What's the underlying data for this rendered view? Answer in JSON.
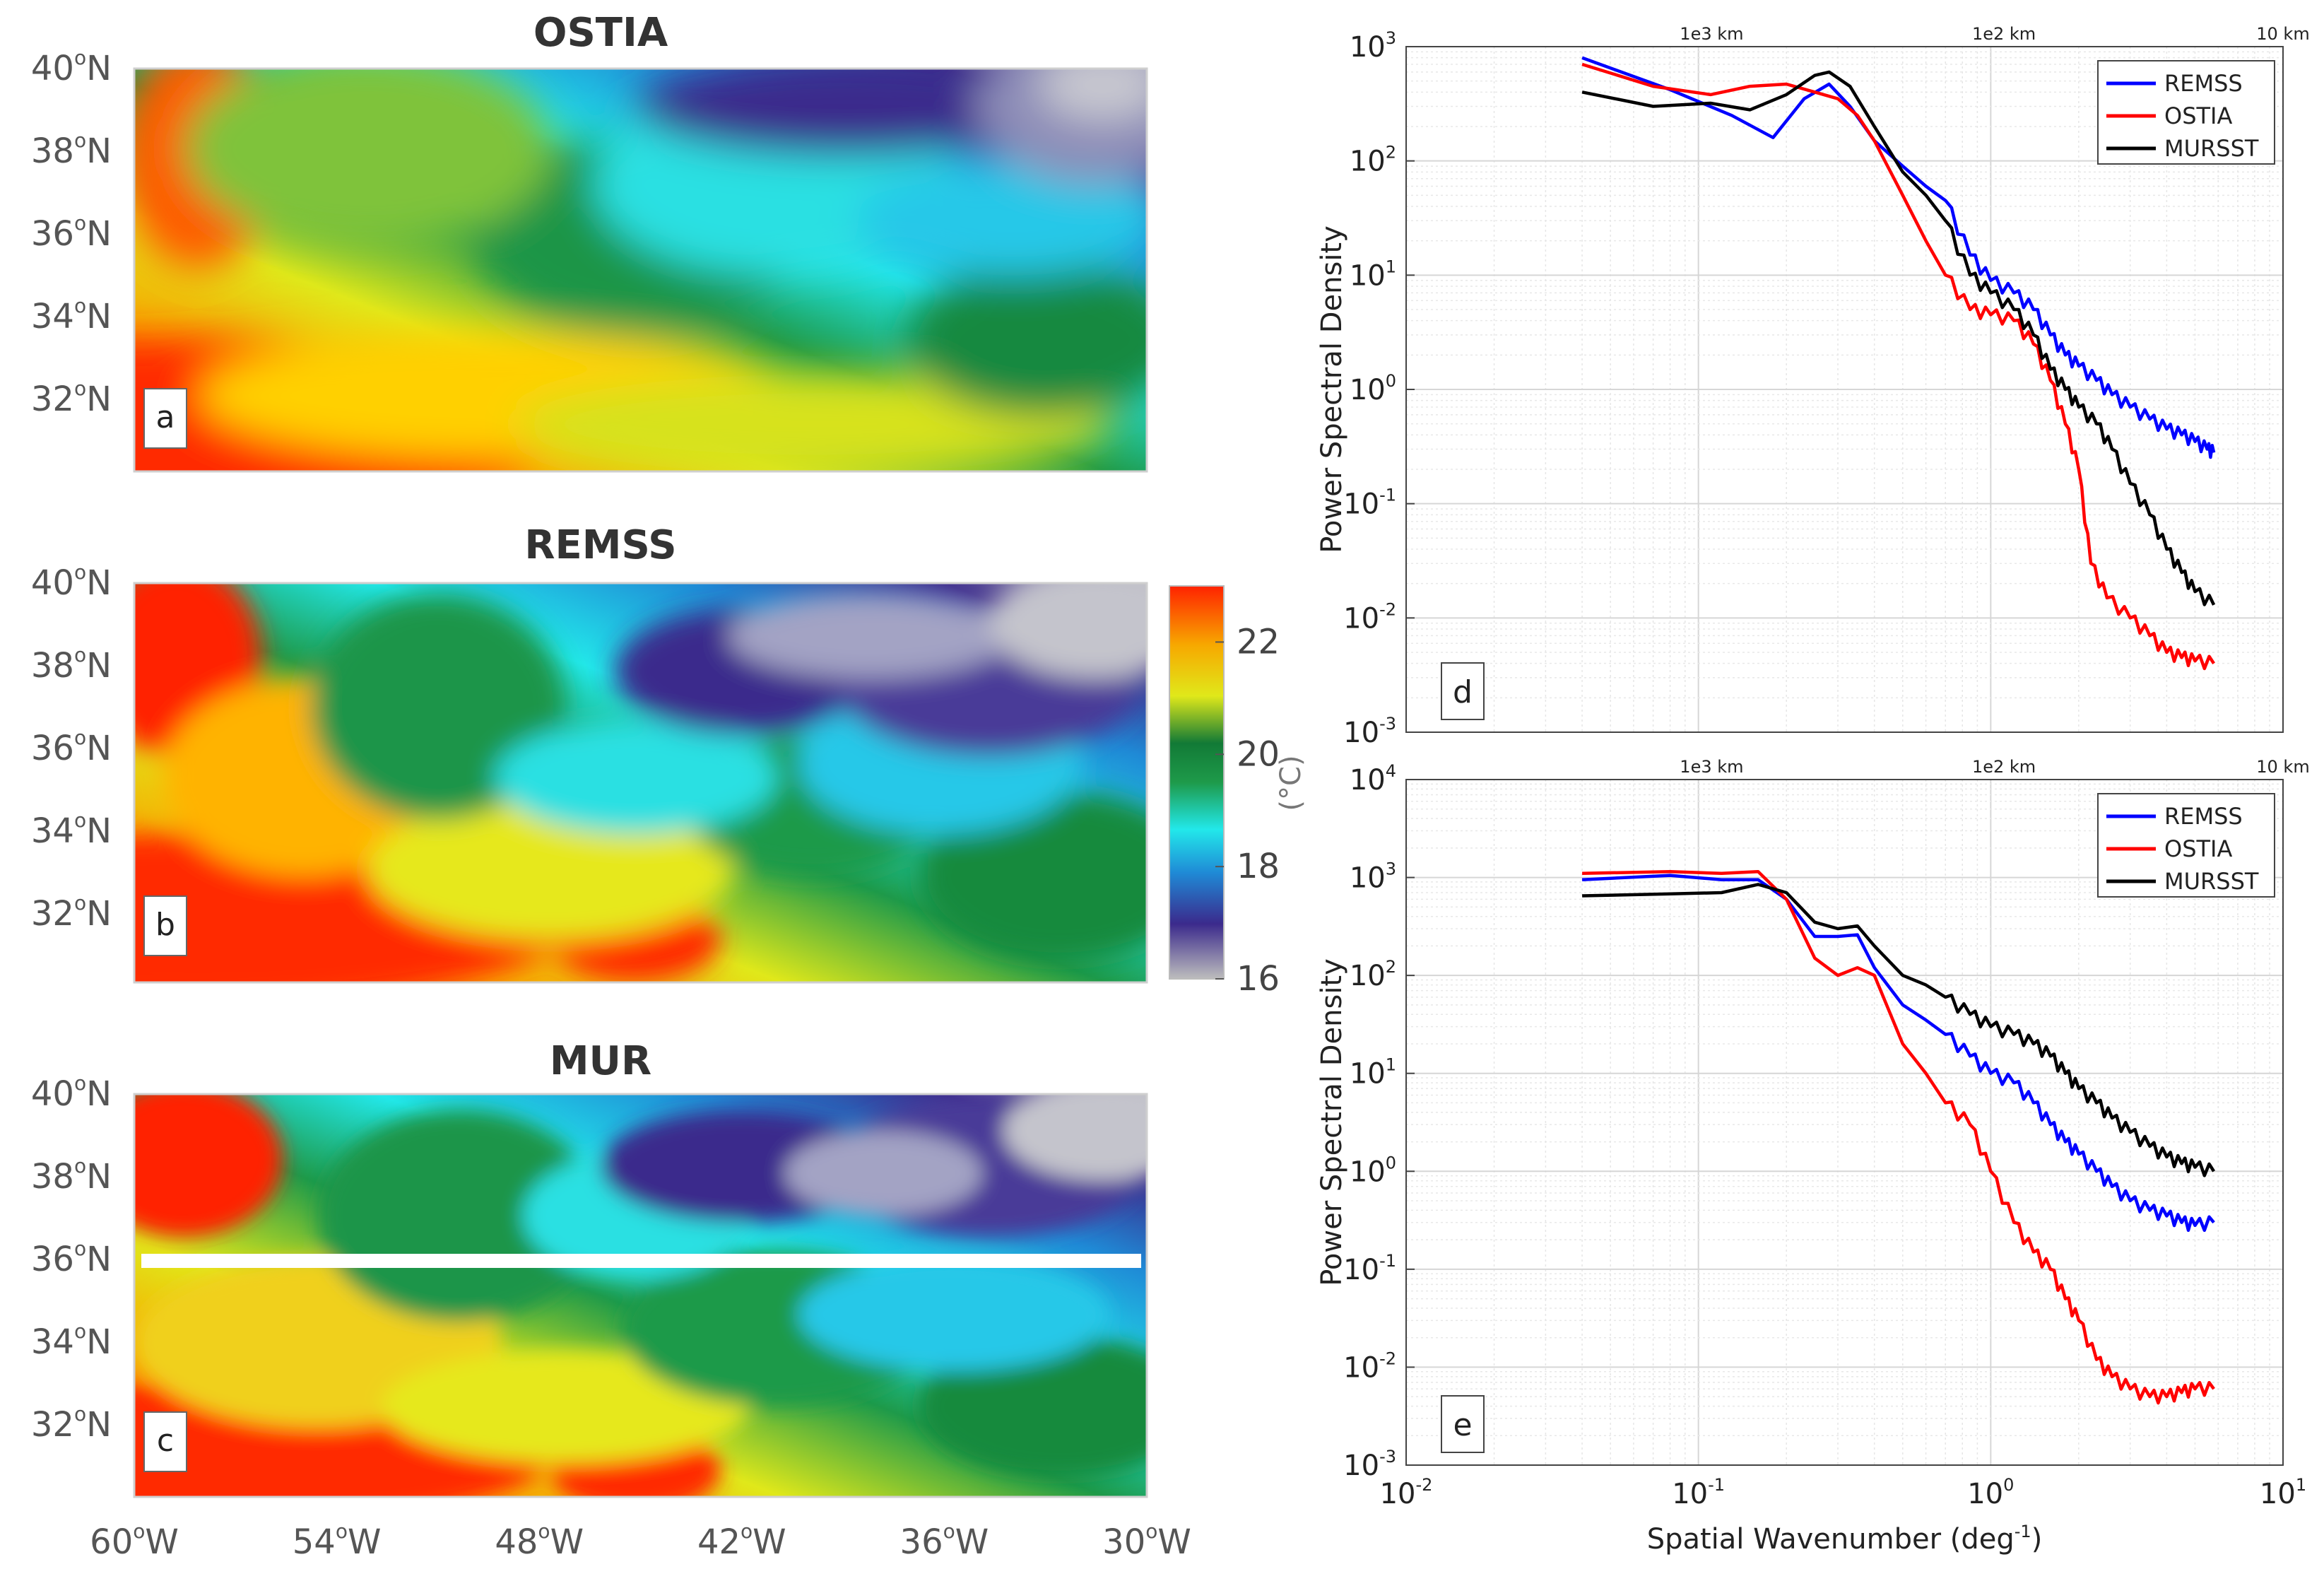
{
  "colors": {
    "remss": "#0000ff",
    "ostia": "#ff0000",
    "mursst": "#000000",
    "land": "#c0c0c0"
  },
  "maps": {
    "lat_labels": [
      "40",
      "38",
      "36",
      "34",
      "32"
    ],
    "lat_suffix": "N",
    "lon_labels": [
      "60",
      "54",
      "48",
      "42",
      "36",
      "30"
    ],
    "lon_suffix": "W",
    "degree_sup": "o",
    "panels": [
      {
        "title": "OSTIA",
        "letter": "a"
      },
      {
        "title": "REMSS",
        "letter": "b"
      },
      {
        "title": "MUR",
        "letter": "c"
      }
    ]
  },
  "colorbar": {
    "tick_labels": [
      "22",
      "20",
      "18",
      "16"
    ],
    "min": 16,
    "max": 23,
    "tick_values": [
      22,
      20,
      18,
      16
    ],
    "unit": "(°C)",
    "stops": [
      "#bdbdbd",
      "#3b2a8c",
      "#1f8ad6",
      "#22e8ea",
      "#1e9a4a",
      "#127a36",
      "#e0e81a",
      "#f7a800",
      "#ff2200"
    ]
  },
  "chart_data": [
    {
      "type": "line",
      "panel": "d",
      "xscale": "log",
      "yscale": "log",
      "xlim": [
        0.01,
        10
      ],
      "ylim": [
        0.001,
        1000
      ],
      "xlabel": "Spatial Wavenumber (deg",
      "xlabel_sup": "-1",
      "xlabel_end": ")",
      "ylabel": "Power Spectral Density",
      "top_axis_labels": [
        {
          "label": "1e3 km",
          "wavenumber": 0.111
        },
        {
          "label": "1e2 km",
          "wavenumber": 1.11
        },
        {
          "label": "10 km",
          "wavenumber": 10
        }
      ],
      "legend": [
        "REMSS",
        "OSTIA",
        "MURSST"
      ],
      "series": [
        {
          "name": "REMSS",
          "x": [
            0.04,
            0.08,
            0.13,
            0.18,
            0.23,
            0.28,
            0.33,
            0.4,
            0.5,
            0.6,
            0.7,
            0.85,
            1.0,
            1.2,
            1.4,
            1.6,
            1.8,
            2.0,
            2.3,
            2.6,
            3.0,
            3.5,
            4.0,
            4.5,
            5.0,
            5.5,
            5.8
          ],
          "y": [
            800,
            420,
            250,
            160,
            350,
            470,
            300,
            150,
            90,
            60,
            45,
            15,
            9,
            7,
            5,
            3,
            2,
            1.6,
            1.2,
            0.9,
            0.7,
            0.55,
            0.45,
            0.4,
            0.35,
            0.3,
            0.28
          ]
        },
        {
          "name": "OSTIA",
          "x": [
            0.04,
            0.07,
            0.11,
            0.15,
            0.2,
            0.25,
            0.3,
            0.35,
            0.4,
            0.5,
            0.6,
            0.7,
            0.85,
            1.0,
            1.2,
            1.4,
            1.6,
            1.8,
            2.0,
            2.2,
            2.5,
            3.0,
            3.5,
            4.0,
            4.5,
            5.0,
            5.8
          ],
          "y": [
            700,
            450,
            380,
            450,
            470,
            400,
            350,
            250,
            150,
            50,
            20,
            10,
            5,
            4.5,
            4,
            2.5,
            1.2,
            0.5,
            0.2,
            0.03,
            0.015,
            0.01,
            0.007,
            0.005,
            0.0045,
            0.0042,
            0.004
          ]
        },
        {
          "name": "MURSST",
          "x": [
            0.04,
            0.07,
            0.11,
            0.15,
            0.2,
            0.25,
            0.28,
            0.33,
            0.4,
            0.5,
            0.6,
            0.7,
            0.85,
            1.0,
            1.2,
            1.4,
            1.6,
            1.8,
            2.0,
            2.3,
            2.6,
            3.0,
            3.5,
            4.0,
            4.5,
            5.0,
            5.8
          ],
          "y": [
            400,
            300,
            320,
            280,
            380,
            560,
            600,
            450,
            200,
            80,
            50,
            30,
            10,
            7,
            5,
            3,
            1.5,
            1.0,
            0.7,
            0.5,
            0.3,
            0.15,
            0.08,
            0.04,
            0.025,
            0.017,
            0.013
          ]
        }
      ]
    },
    {
      "type": "line",
      "panel": "e",
      "xscale": "log",
      "yscale": "log",
      "xlim": [
        0.01,
        10
      ],
      "ylim": [
        0.001,
        10000
      ],
      "xlabel": "Spatial Wavenumber (deg",
      "xlabel_sup": "-1",
      "xlabel_end": ")",
      "ylabel": "Power Spectral Density",
      "top_axis_labels": [
        {
          "label": "1e3 km",
          "wavenumber": 0.111
        },
        {
          "label": "1e2 km",
          "wavenumber": 1.11
        },
        {
          "label": "10 km",
          "wavenumber": 10
        }
      ],
      "legend": [
        "REMSS",
        "OSTIA",
        "MURSST"
      ],
      "series": [
        {
          "name": "REMSS",
          "x": [
            0.04,
            0.08,
            0.12,
            0.16,
            0.2,
            0.25,
            0.3,
            0.35,
            0.4,
            0.5,
            0.6,
            0.7,
            0.85,
            1.0,
            1.2,
            1.4,
            1.6,
            1.8,
            2.0,
            2.3,
            2.6,
            3.0,
            3.5,
            4.0,
            4.5,
            5.0,
            5.8
          ],
          "y": [
            950,
            1050,
            950,
            950,
            600,
            250,
            250,
            260,
            120,
            50,
            35,
            25,
            15,
            10,
            8,
            5,
            3,
            2,
            1.5,
            1.0,
            0.7,
            0.5,
            0.4,
            0.35,
            0.3,
            0.28,
            0.3
          ]
        },
        {
          "name": "OSTIA",
          "x": [
            0.04,
            0.08,
            0.12,
            0.16,
            0.2,
            0.25,
            0.3,
            0.35,
            0.4,
            0.5,
            0.6,
            0.7,
            0.85,
            1.0,
            1.2,
            1.4,
            1.6,
            1.8,
            2.0,
            2.3,
            2.6,
            3.0,
            3.5,
            4.0,
            4.5,
            5.0,
            5.8
          ],
          "y": [
            1100,
            1150,
            1100,
            1150,
            600,
            150,
            100,
            120,
            100,
            20,
            10,
            5,
            3,
            1,
            0.3,
            0.15,
            0.1,
            0.05,
            0.03,
            0.012,
            0.008,
            0.006,
            0.005,
            0.005,
            0.0055,
            0.006,
            0.006
          ]
        },
        {
          "name": "MURSST",
          "x": [
            0.04,
            0.08,
            0.12,
            0.16,
            0.2,
            0.25,
            0.3,
            0.35,
            0.4,
            0.5,
            0.6,
            0.7,
            0.85,
            1.0,
            1.2,
            1.4,
            1.6,
            1.8,
            2.0,
            2.3,
            2.6,
            3.0,
            3.5,
            4.0,
            4.5,
            5.0,
            5.8
          ],
          "y": [
            650,
            680,
            700,
            850,
            700,
            350,
            300,
            320,
            200,
            100,
            80,
            60,
            40,
            30,
            25,
            20,
            15,
            10,
            7,
            5,
            3.5,
            2.5,
            1.8,
            1.4,
            1.2,
            1.1,
            1.0
          ]
        }
      ]
    }
  ]
}
